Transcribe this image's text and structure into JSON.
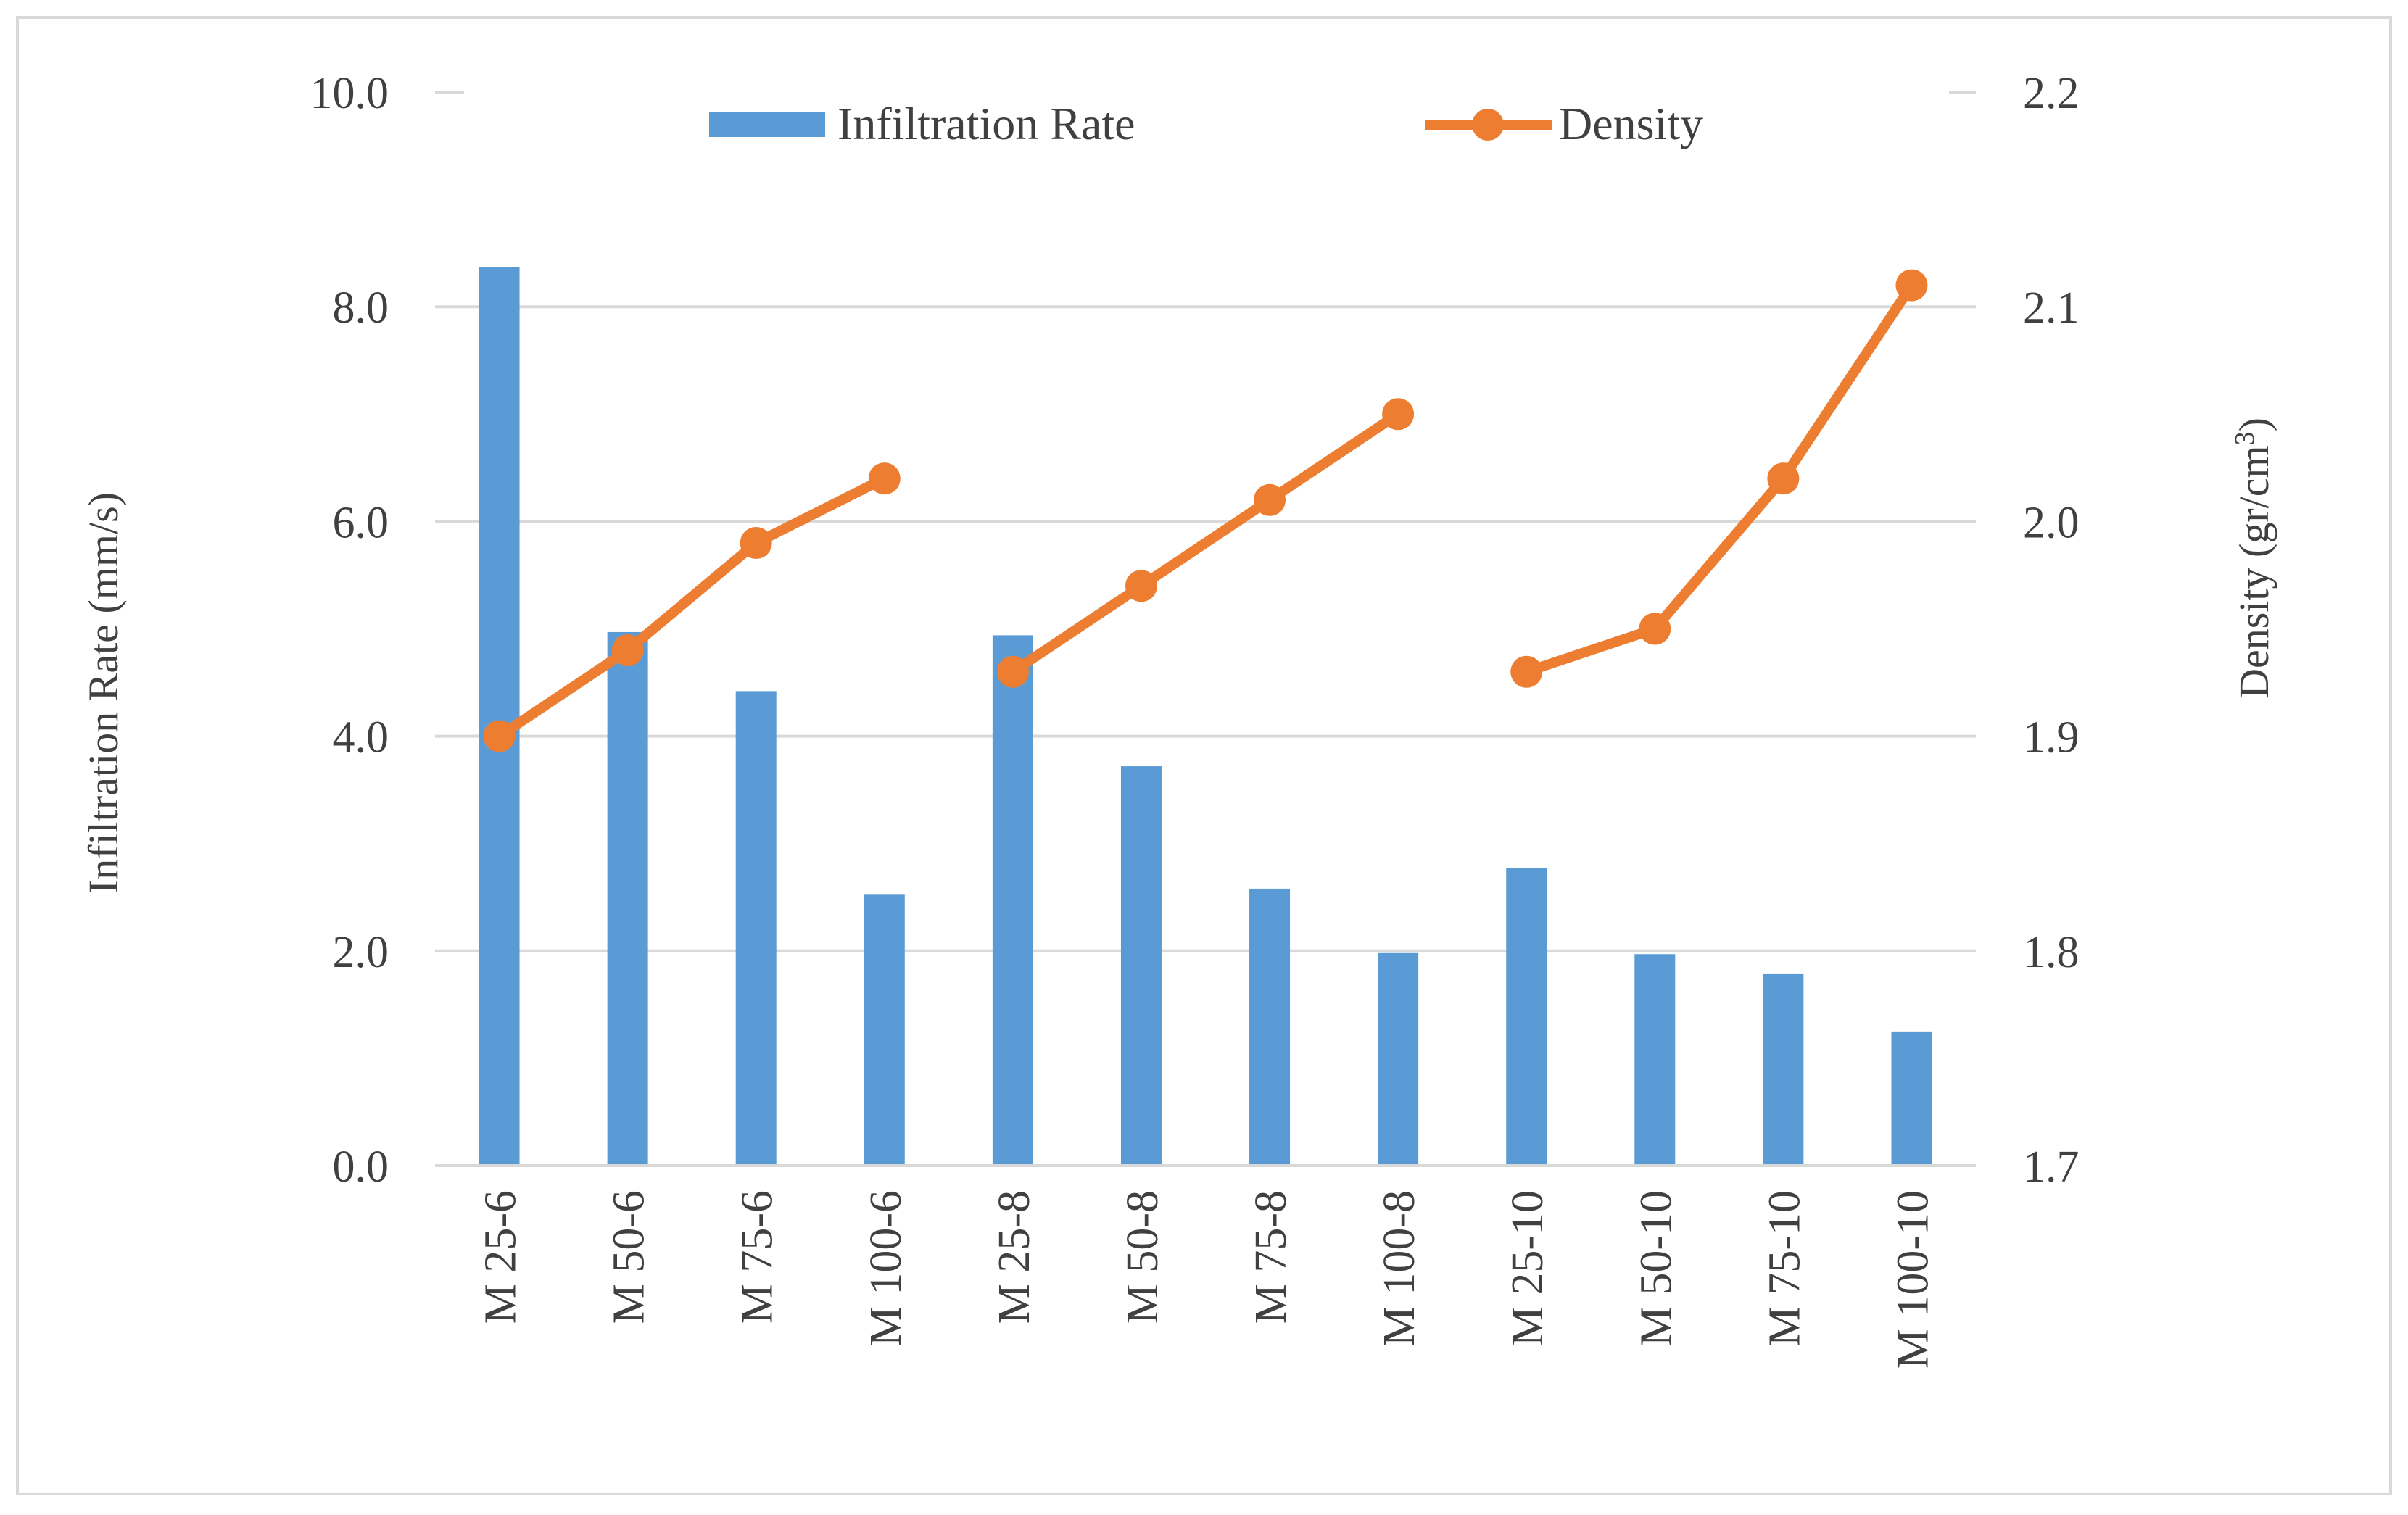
{
  "chart_data": {
    "type": "bar",
    "title": "",
    "categories": [
      "M 25-6",
      "M 50-6",
      "M 75-6",
      "M 100-6",
      "M 25-8",
      "M 50-8",
      "M 75-8",
      "M 100-8",
      "M 25-10",
      "M 50-10",
      "M 75-10",
      "M 100-10"
    ],
    "series": [
      {
        "name": "Infiltration Rate",
        "type": "bar",
        "axis": "left",
        "color": "#5b9bd5",
        "values": [
          8.37,
          4.97,
          4.42,
          2.53,
          4.94,
          3.72,
          2.58,
          1.98,
          2.77,
          1.97,
          1.79,
          1.25
        ]
      },
      {
        "name": "Density",
        "type": "line",
        "axis": "right",
        "color": "#ed7d31",
        "segments": [
          [
            0,
            3
          ],
          [
            4,
            7
          ],
          [
            8,
            11
          ]
        ],
        "values": [
          1.9,
          1.94,
          1.99,
          2.02,
          1.93,
          1.97,
          2.01,
          2.05,
          1.93,
          1.95,
          2.02,
          2.11
        ]
      }
    ],
    "y_left": {
      "label": "Infiltration Rate (mm/s)",
      "ylim": [
        0,
        10
      ],
      "ticks": [
        0,
        2,
        4,
        6,
        8,
        10
      ],
      "tick_labels": [
        "0.0",
        "2.0",
        "4.0",
        "6.0",
        "8.0",
        "10.0"
      ]
    },
    "y_right": {
      "label_main": "Density (gr/cm",
      "label_sup": "3",
      "label_close": ")",
      "ylim": [
        1.7,
        2.2
      ],
      "ticks": [
        1.7,
        1.8,
        1.9,
        2.0,
        2.1,
        2.2
      ],
      "tick_labels": [
        "1.7",
        "1.8",
        "1.9",
        "2.0",
        "2.1",
        "2.2"
      ]
    },
    "legend": {
      "position": "top",
      "entries": [
        "Infiltration Rate",
        "Density"
      ]
    },
    "grid": true,
    "colors": {
      "grid": "#d9d9d9",
      "axis": "#d9d9d9",
      "text": "#404040",
      "border": "#d9d9d9"
    }
  }
}
